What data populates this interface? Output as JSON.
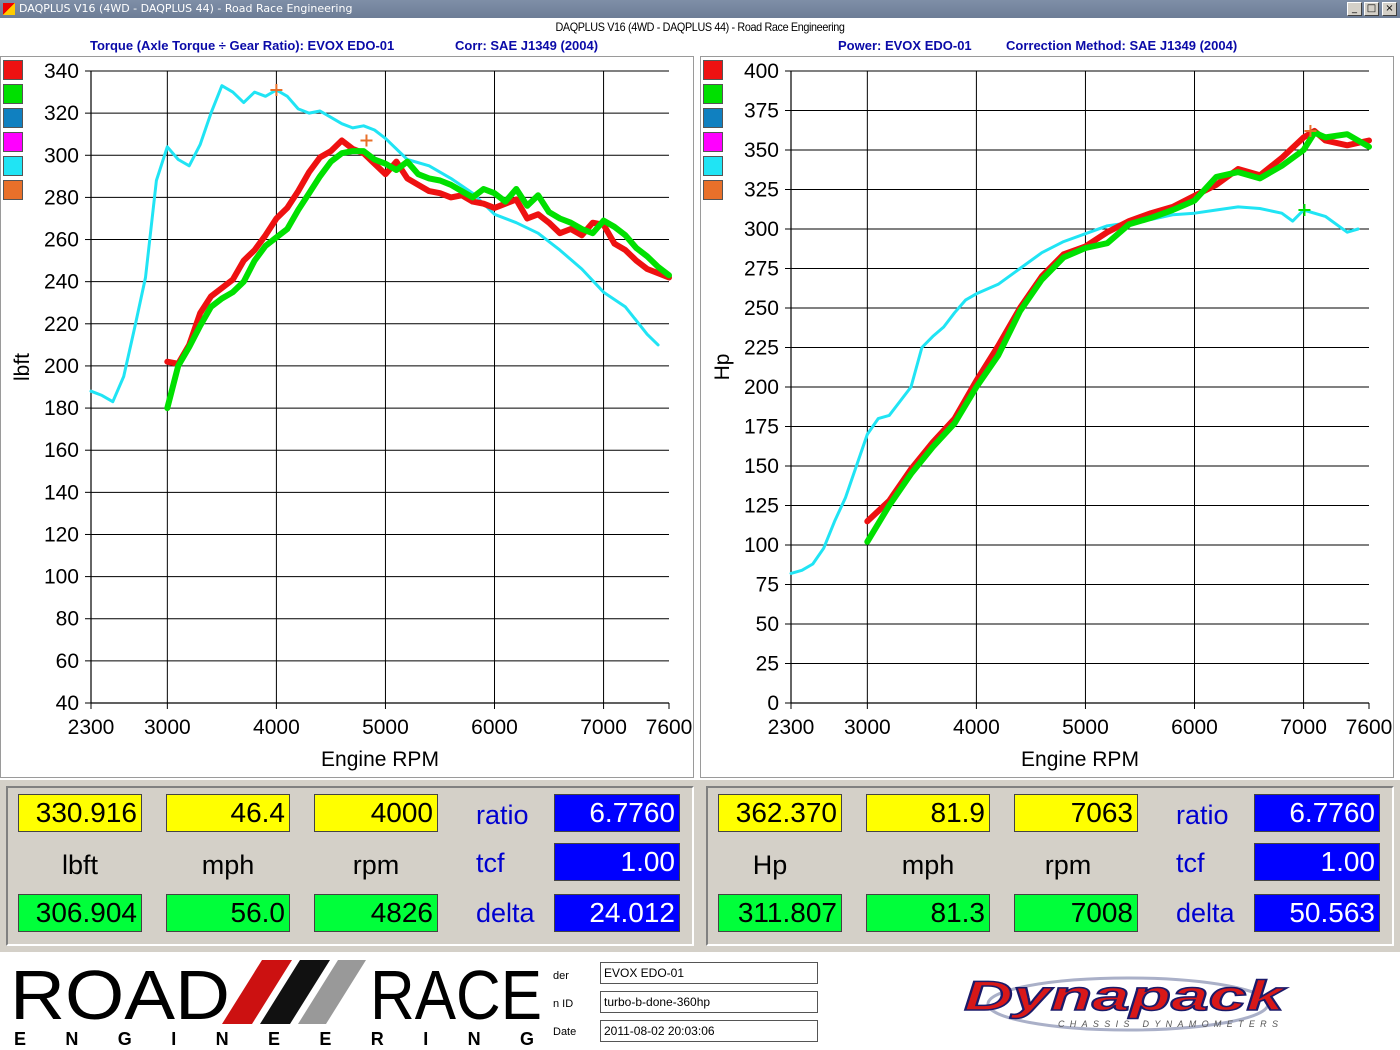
{
  "window": {
    "title": "DAQPLUS V16 (4WD - DAQPLUS 44) - Road Race Engineering",
    "subtitle": "DAQPLUS V16 (4WD - DAQPLUS 44) - Road Race Engineering",
    "min_label": "_",
    "max_label": "□",
    "close_label": "×"
  },
  "headers": {
    "torque_title": "Torque (Axle Torque ÷ Gear Ratio): EVOX EDO-01",
    "torque_corr": "Corr: SAE J1349 (2004)",
    "power_title": "Power: EVOX EDO-01",
    "power_corr": "Correction Method: SAE J1349 (2004)"
  },
  "colors": {
    "red": "#ee1111",
    "green": "#00e000",
    "blue": "#1080c0",
    "magenta": "#ff00ff",
    "cyan": "#20e4f4",
    "orange": "#e8702a",
    "grid": "#000000"
  },
  "chart_data": [
    {
      "type": "line",
      "xlabel": "Engine RPM",
      "ylabel": "lbft",
      "xlim": [
        2300,
        7600
      ],
      "ylim": [
        40,
        340
      ],
      "xticks": [
        2300,
        3000,
        4000,
        5000,
        6000,
        7000,
        7600
      ],
      "yticks": [
        40,
        60,
        80,
        100,
        120,
        140,
        160,
        180,
        200,
        220,
        240,
        260,
        280,
        300,
        320,
        340
      ],
      "grid": true,
      "legend_swatches": [
        "red",
        "green",
        "blue",
        "magenta",
        "cyan",
        "orange"
      ],
      "series": [
        {
          "color": "cyan",
          "x": [
            2300,
            2400,
            2500,
            2600,
            2700,
            2800,
            2900,
            3000,
            3100,
            3200,
            3300,
            3400,
            3500,
            3600,
            3700,
            3800,
            3900,
            4000,
            4100,
            4200,
            4300,
            4400,
            4500,
            4600,
            4700,
            4800,
            4900,
            5000,
            5200,
            5400,
            5600,
            5800,
            6000,
            6200,
            6400,
            6600,
            6800,
            7000,
            7200,
            7400,
            7500
          ],
          "y": [
            188,
            186,
            183,
            195,
            218,
            242,
            288,
            304,
            298,
            295,
            305,
            320,
            333,
            330,
            325,
            330,
            328,
            331,
            328,
            322,
            320,
            321,
            318,
            315,
            313,
            314,
            312,
            308,
            298,
            295,
            289,
            282,
            272,
            268,
            263,
            255,
            246,
            235,
            228,
            215,
            210
          ]
        },
        {
          "color": "red",
          "x": [
            3000,
            3100,
            3200,
            3300,
            3400,
            3500,
            3600,
            3700,
            3800,
            3900,
            4000,
            4100,
            4200,
            4300,
            4400,
            4500,
            4600,
            4700,
            4800,
            4900,
            5000,
            5100,
            5200,
            5300,
            5400,
            5500,
            5600,
            5700,
            5800,
            5900,
            6000,
            6100,
            6200,
            6300,
            6400,
            6500,
            6600,
            6700,
            6800,
            6900,
            7000,
            7100,
            7200,
            7300,
            7400,
            7500,
            7600
          ],
          "y": [
            202,
            201,
            210,
            225,
            233,
            237,
            241,
            250,
            255,
            262,
            270,
            275,
            283,
            292,
            299,
            302,
            307,
            303,
            301,
            296,
            291,
            297,
            289,
            286,
            283,
            282,
            280,
            281,
            278,
            277,
            275,
            277,
            279,
            270,
            272,
            268,
            263,
            265,
            262,
            268,
            267,
            258,
            255,
            250,
            246,
            244,
            242
          ]
        },
        {
          "color": "green",
          "x": [
            3000,
            3100,
            3200,
            3300,
            3400,
            3500,
            3600,
            3700,
            3800,
            3900,
            4000,
            4100,
            4200,
            4300,
            4400,
            4500,
            4600,
            4700,
            4800,
            4900,
            5000,
            5100,
            5200,
            5300,
            5400,
            5500,
            5600,
            5700,
            5800,
            5900,
            6000,
            6100,
            6200,
            6300,
            6400,
            6500,
            6600,
            6700,
            6800,
            6900,
            7000,
            7100,
            7200,
            7300,
            7400,
            7500,
            7600
          ],
          "y": [
            180,
            200,
            209,
            219,
            228,
            232,
            235,
            240,
            250,
            257,
            261,
            265,
            274,
            282,
            290,
            297,
            301,
            302,
            302,
            298,
            296,
            293,
            297,
            291,
            289,
            288,
            286,
            283,
            280,
            284,
            282,
            278,
            284,
            276,
            281,
            273,
            270,
            268,
            265,
            263,
            269,
            266,
            262,
            256,
            252,
            247,
            243
          ]
        }
      ],
      "markers": [
        {
          "color": "orange",
          "x": 4000,
          "y": 331
        },
        {
          "color": "orange",
          "x": 4826,
          "y": 307
        }
      ]
    },
    {
      "type": "line",
      "xlabel": "Engine RPM",
      "ylabel": "Hp",
      "xlim": [
        2300,
        7600
      ],
      "ylim": [
        0,
        400
      ],
      "xticks": [
        2300,
        3000,
        4000,
        5000,
        6000,
        7000,
        7600
      ],
      "yticks": [
        0,
        25,
        50,
        75,
        100,
        125,
        150,
        175,
        200,
        225,
        250,
        275,
        300,
        325,
        350,
        375,
        400
      ],
      "grid": true,
      "legend_swatches": [
        "red",
        "green",
        "blue",
        "magenta",
        "cyan",
        "orange"
      ],
      "series": [
        {
          "color": "cyan",
          "x": [
            2300,
            2400,
            2500,
            2600,
            2700,
            2800,
            2900,
            3000,
            3100,
            3200,
            3400,
            3500,
            3600,
            3700,
            3800,
            3900,
            4000,
            4200,
            4400,
            4600,
            4800,
            5000,
            5200,
            5400,
            5600,
            5800,
            6000,
            6200,
            6400,
            6600,
            6800,
            6900,
            7000,
            7200,
            7400,
            7500
          ],
          "y": [
            82,
            84,
            88,
            98,
            115,
            130,
            150,
            170,
            180,
            182,
            200,
            225,
            232,
            238,
            247,
            255,
            259,
            265,
            275,
            285,
            292,
            297,
            302,
            304,
            306,
            309,
            310,
            312,
            314,
            313,
            310,
            305,
            312,
            308,
            298,
            300
          ]
        },
        {
          "color": "red",
          "x": [
            3000,
            3200,
            3400,
            3600,
            3800,
            4000,
            4200,
            4400,
            4600,
            4800,
            5000,
            5200,
            5400,
            5600,
            5800,
            6000,
            6200,
            6400,
            6600,
            6800,
            7000,
            7100,
            7200,
            7400,
            7600
          ],
          "y": [
            115,
            128,
            148,
            165,
            180,
            204,
            226,
            250,
            270,
            284,
            289,
            298,
            305,
            310,
            314,
            321,
            328,
            338,
            334,
            345,
            358,
            362,
            356,
            353,
            356
          ]
        },
        {
          "color": "green",
          "x": [
            3000,
            3200,
            3400,
            3600,
            3800,
            4000,
            4200,
            4400,
            4600,
            4800,
            5000,
            5200,
            5400,
            5600,
            5800,
            6000,
            6200,
            6400,
            6600,
            6800,
            7000,
            7100,
            7200,
            7400,
            7600
          ],
          "y": [
            102,
            125,
            145,
            162,
            177,
            200,
            220,
            248,
            268,
            282,
            288,
            291,
            303,
            307,
            312,
            318,
            333,
            336,
            332,
            340,
            350,
            361,
            358,
            360,
            352
          ]
        }
      ],
      "markers": [
        {
          "color": "orange",
          "x": 7063,
          "y": 362
        },
        {
          "color": "green",
          "x": 7008,
          "y": 312
        }
      ]
    }
  ],
  "readout": {
    "left": {
      "top": [
        "330.916",
        "46.4",
        "4000"
      ],
      "units": [
        "lbft",
        "mph",
        "rpm"
      ],
      "bottom": [
        "306.904",
        "56.0",
        "4826"
      ],
      "ratio_label": "ratio",
      "ratio": "6.7760",
      "tcf_label": "tcf",
      "tcf": "1.00",
      "delta_label": "delta",
      "delta": "24.012"
    },
    "right": {
      "top": [
        "362.370",
        "81.9",
        "7063"
      ],
      "units": [
        "Hp",
        "mph",
        "rpm"
      ],
      "bottom": [
        "311.807",
        "81.3",
        "7008"
      ],
      "ratio_label": "ratio",
      "ratio": "6.7760",
      "tcf_label": "tcf",
      "tcf": "1.00",
      "delta_label": "delta",
      "delta": "50.563"
    }
  },
  "footer": {
    "logo_left_top": "ROAD",
    "logo_left_top2": "RACE",
    "logo_left_bottom": "E N G I N E E R I N G",
    "info_labels": [
      "der",
      "n ID",
      "Date"
    ],
    "info_values": [
      "EVOX EDO-01",
      "turbo-b-done-360hp",
      "2011-08-02 20:03:06"
    ],
    "logo_right": "Dynapack",
    "logo_right_sub": "CHASSIS DYNAMOMETERS"
  }
}
